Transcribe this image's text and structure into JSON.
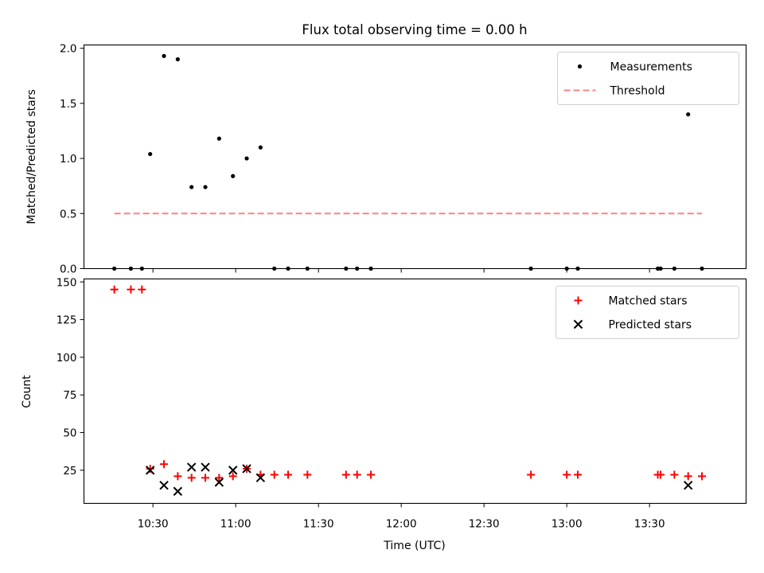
{
  "chart_data": {
    "title": "Flux total observing time = 0.00 h",
    "xlabel": "Time (UTC)",
    "x_ticks": [
      "10:30",
      "11:00",
      "11:30",
      "12:00",
      "12:30",
      "13:00",
      "13:30"
    ],
    "x_range": [
      "10:05",
      "14:05"
    ],
    "panels": [
      {
        "type": "scatter",
        "ylabel": "Matched/Predicted stars",
        "ylim": [
          0,
          2.03
        ],
        "yticks": [
          "0.0",
          "0.5",
          "1.0",
          "1.5",
          "2.0"
        ],
        "legend_position": "top-right",
        "series": [
          {
            "name": "Measurements",
            "type": "scatter",
            "marker": "dot",
            "color": "#000000",
            "points": [
              [
                "10:16",
                0
              ],
              [
                "10:22",
                0
              ],
              [
                "10:26",
                0
              ],
              [
                "10:29",
                1.04
              ],
              [
                "10:34",
                1.93
              ],
              [
                "10:39",
                1.9
              ],
              [
                "10:44",
                0.74
              ],
              [
                "10:49",
                0.74
              ],
              [
                "10:54",
                1.18
              ],
              [
                "10:59",
                0.84
              ],
              [
                "11:04",
                1.0
              ],
              [
                "11:09",
                1.1
              ],
              [
                "11:14",
                0
              ],
              [
                "11:19",
                0
              ],
              [
                "11:26",
                0
              ],
              [
                "11:40",
                0
              ],
              [
                "11:44",
                0
              ],
              [
                "11:49",
                0
              ],
              [
                "12:47",
                0
              ],
              [
                "13:00",
                0
              ],
              [
                "13:04",
                0
              ],
              [
                "13:33",
                0
              ],
              [
                "13:34",
                0
              ],
              [
                "13:39",
                0
              ],
              [
                "13:44",
                1.4
              ],
              [
                "13:49",
                0
              ]
            ]
          },
          {
            "name": "Threshold",
            "type": "line",
            "style": "dashed",
            "color": "#ff8080",
            "points": [
              [
                "10:16",
                0.5
              ],
              [
                "13:49",
                0.5
              ]
            ]
          }
        ]
      },
      {
        "type": "scatter",
        "ylabel": "Count",
        "ylim": [
          3,
          152
        ],
        "yticks": [
          "25",
          "50",
          "75",
          "100",
          "125",
          "150"
        ],
        "legend_position": "top-right",
        "series": [
          {
            "name": "Matched stars",
            "type": "scatter",
            "marker": "plus",
            "color": "#ff0000",
            "points": [
              [
                "10:16",
                145
              ],
              [
                "10:22",
                145
              ],
              [
                "10:26",
                145
              ],
              [
                "10:29",
                26
              ],
              [
                "10:34",
                29
              ],
              [
                "10:39",
                21
              ],
              [
                "10:44",
                20
              ],
              [
                "10:49",
                20
              ],
              [
                "10:54",
                20
              ],
              [
                "10:59",
                21
              ],
              [
                "11:04",
                26
              ],
              [
                "11:09",
                22
              ],
              [
                "11:14",
                22
              ],
              [
                "11:19",
                22
              ],
              [
                "11:26",
                22
              ],
              [
                "11:40",
                22
              ],
              [
                "11:44",
                22
              ],
              [
                "11:49",
                22
              ],
              [
                "12:47",
                22
              ],
              [
                "13:00",
                22
              ],
              [
                "13:04",
                22
              ],
              [
                "13:33",
                22
              ],
              [
                "13:34",
                22
              ],
              [
                "13:39",
                22
              ],
              [
                "13:44",
                21
              ],
              [
                "13:49",
                21
              ]
            ]
          },
          {
            "name": "Predicted stars",
            "type": "scatter",
            "marker": "x",
            "color": "#000000",
            "points": [
              [
                "10:29",
                25
              ],
              [
                "10:34",
                15
              ],
              [
                "10:39",
                11
              ],
              [
                "10:44",
                27
              ],
              [
                "10:49",
                27
              ],
              [
                "10:54",
                17
              ],
              [
                "10:59",
                25
              ],
              [
                "11:04",
                26
              ],
              [
                "11:09",
                20
              ],
              [
                "13:44",
                15
              ]
            ]
          }
        ]
      }
    ]
  }
}
